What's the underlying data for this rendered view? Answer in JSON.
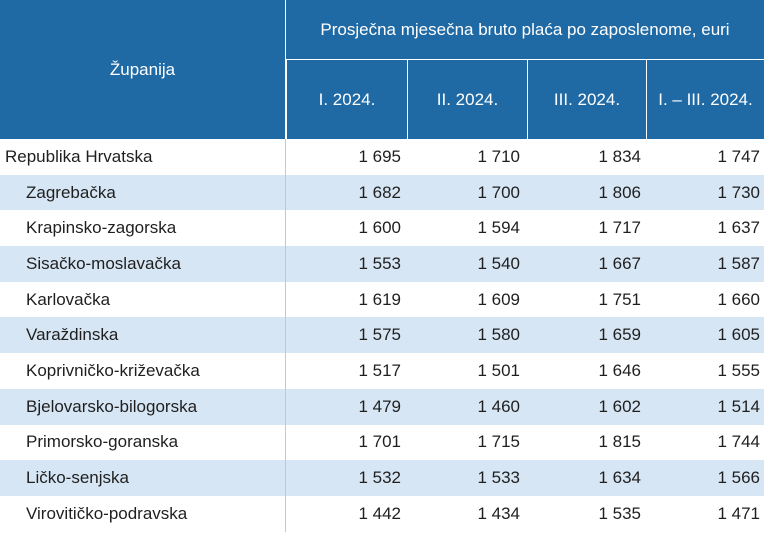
{
  "header": {
    "county_label": "Županija",
    "group_label": "Prosječna mjesečna bruto plaća po zaposlenome, euri",
    "periods": [
      "I. 2024.",
      "II. 2024.",
      "III. 2024.",
      "I. – III. 2024."
    ]
  },
  "rows": [
    {
      "name": "Republika Hrvatska",
      "values": [
        "1 695",
        "1 710",
        "1 834",
        "1 747"
      ]
    },
    {
      "name": "Zagrebačka",
      "values": [
        "1 682",
        "1 700",
        "1 806",
        "1 730"
      ]
    },
    {
      "name": "Krapinsko-zagorska",
      "values": [
        "1 600",
        "1 594",
        "1 717",
        "1 637"
      ]
    },
    {
      "name": "Sisačko-moslavačka",
      "values": [
        "1 553",
        "1 540",
        "1 667",
        "1 587"
      ]
    },
    {
      "name": "Karlovačka",
      "values": [
        "1 619",
        "1 609",
        "1 751",
        "1 660"
      ]
    },
    {
      "name": "Varaždinska",
      "values": [
        "1 575",
        "1 580",
        "1 659",
        "1 605"
      ]
    },
    {
      "name": "Koprivničko-križevačka",
      "values": [
        "1 517",
        "1 501",
        "1 646",
        "1 555"
      ]
    },
    {
      "name": "Bjelovarsko-bilogorska",
      "values": [
        "1 479",
        "1 460",
        "1 602",
        "1 514"
      ]
    },
    {
      "name": "Primorsko-goranska",
      "values": [
        "1 701",
        "1 715",
        "1 815",
        "1 744"
      ]
    },
    {
      "name": "Ličko-senjska",
      "values": [
        "1 532",
        "1 533",
        "1 634",
        "1 566"
      ]
    },
    {
      "name": "Virovitičko-podravska",
      "values": [
        "1 442",
        "1 434",
        "1 535",
        "1 471"
      ]
    }
  ]
}
